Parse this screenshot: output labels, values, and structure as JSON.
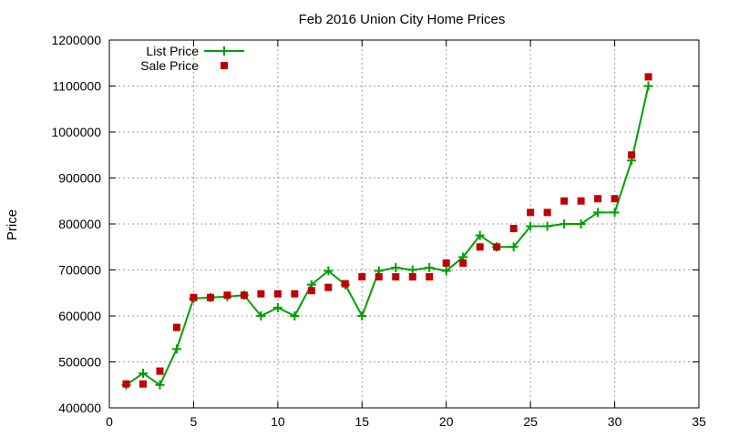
{
  "chart_data": {
    "type": "line",
    "title": "Feb 2016 Union City Home Prices",
    "xlabel": "",
    "ylabel": "Price",
    "xlim": [
      0,
      35
    ],
    "ylim": [
      400000,
      1200000
    ],
    "x_ticks": [
      0,
      5,
      10,
      15,
      20,
      25,
      30,
      35
    ],
    "y_ticks": [
      400000,
      500000,
      600000,
      700000,
      800000,
      900000,
      1000000,
      1100000,
      1200000
    ],
    "grid": true,
    "legend_position": "top-left",
    "series": [
      {
        "name": "List Price",
        "style": "line-with-plus-markers",
        "color": "#00a000",
        "points": [
          [
            1,
            450000
          ],
          [
            2,
            475000
          ],
          [
            3,
            450000
          ],
          [
            4,
            528000
          ],
          [
            5,
            638000
          ],
          [
            6,
            640000
          ],
          [
            7,
            642000
          ],
          [
            8,
            645000
          ],
          [
            9,
            600000
          ],
          [
            10,
            618000
          ],
          [
            11,
            600000
          ],
          [
            12,
            668000
          ],
          [
            13,
            698000
          ],
          [
            14,
            668000
          ],
          [
            15,
            600000
          ],
          [
            16,
            698000
          ],
          [
            17,
            705000
          ],
          [
            18,
            700000
          ],
          [
            19,
            705000
          ],
          [
            20,
            698000
          ],
          [
            21,
            728000
          ],
          [
            22,
            775000
          ],
          [
            23,
            750000
          ],
          [
            24,
            750000
          ],
          [
            25,
            795000
          ],
          [
            26,
            795000
          ],
          [
            27,
            800000
          ],
          [
            28,
            800000
          ],
          [
            29,
            825000
          ],
          [
            30,
            825000
          ],
          [
            31,
            938000
          ],
          [
            32,
            1100000
          ]
        ]
      },
      {
        "name": "Sale Price",
        "style": "square-markers",
        "color": "#c00000",
        "points": [
          [
            1,
            452000
          ],
          [
            2,
            452000
          ],
          [
            3,
            480000
          ],
          [
            4,
            575000
          ],
          [
            5,
            640000
          ],
          [
            6,
            640000
          ],
          [
            7,
            645000
          ],
          [
            8,
            645000
          ],
          [
            9,
            648000
          ],
          [
            10,
            648000
          ],
          [
            11,
            648000
          ],
          [
            12,
            655000
          ],
          [
            13,
            662000
          ],
          [
            14,
            670000
          ],
          [
            15,
            685000
          ],
          [
            16,
            685000
          ],
          [
            17,
            685000
          ],
          [
            18,
            685000
          ],
          [
            19,
            685000
          ],
          [
            20,
            715000
          ],
          [
            21,
            715000
          ],
          [
            22,
            750000
          ],
          [
            23,
            750000
          ],
          [
            24,
            790000
          ],
          [
            25,
            825000
          ],
          [
            26,
            825000
          ],
          [
            27,
            850000
          ],
          [
            28,
            850000
          ],
          [
            29,
            855000
          ],
          [
            30,
            855000
          ],
          [
            31,
            950000
          ],
          [
            32,
            1120000
          ]
        ]
      }
    ]
  }
}
